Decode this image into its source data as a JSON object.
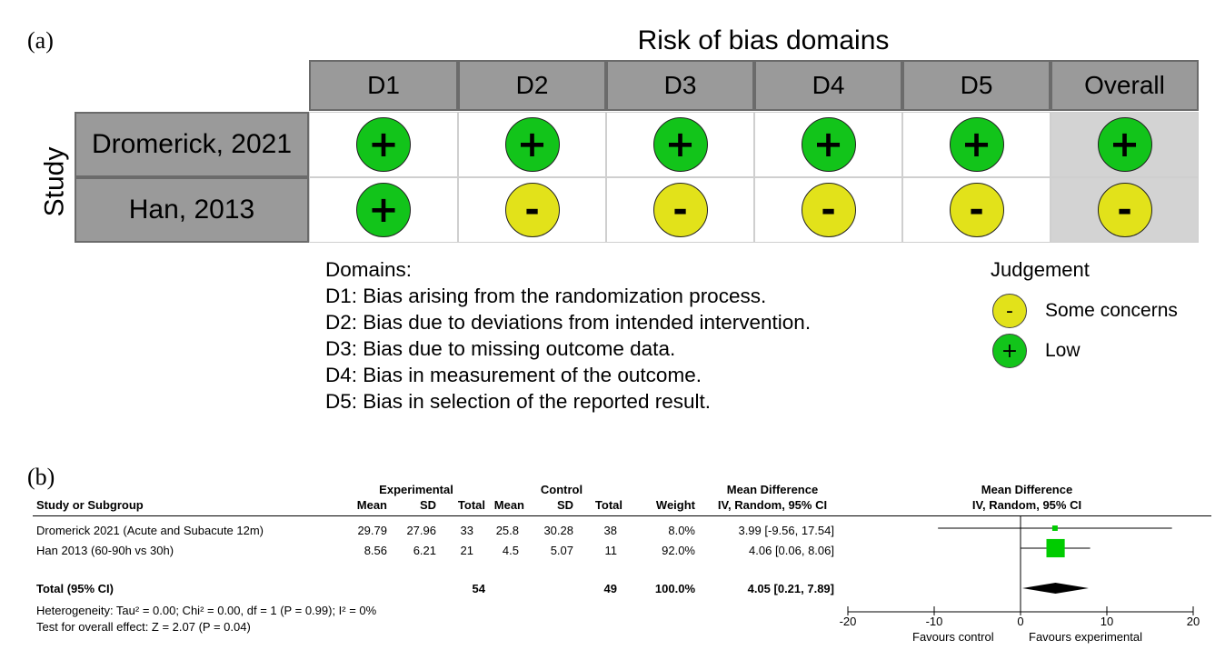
{
  "panel_a": {
    "label": "(a)",
    "title": "Risk of bias domains",
    "row_axis_label": "Study",
    "columns": [
      "D1",
      "D2",
      "D3",
      "D4",
      "D5",
      "Overall"
    ],
    "studies": [
      {
        "name": "Dromerick, 2021",
        "judgements": [
          "+",
          "+",
          "+",
          "+",
          "+",
          "+"
        ]
      },
      {
        "name": "Han, 2013",
        "judgements": [
          "+",
          "-",
          "-",
          "-",
          "-",
          "-"
        ]
      }
    ],
    "domains_heading": "Domains:",
    "domains": [
      "D1: Bias arising from the randomization process.",
      "D2: Bias due to deviations from intended intervention.",
      "D3: Bias due to missing outcome data.",
      "D4: Bias in measurement of the outcome.",
      "D5: Bias in selection of the reported result."
    ],
    "legend": {
      "title": "Judgement",
      "items": [
        {
          "symbol": "-",
          "label": "Some concerns"
        },
        {
          "symbol": "+",
          "label": "Low"
        }
      ]
    },
    "colors": {
      "low": "#12c41a",
      "some_concerns": "#e2e21a",
      "header": "#9a9a9a"
    }
  },
  "panel_b": {
    "label": "(b)",
    "group_headers": {
      "experimental": "Experimental",
      "control": "Control",
      "md": "Mean Difference",
      "md_plot": "Mean Difference"
    },
    "columns": {
      "study": "Study or Subgroup",
      "mean_e": "Mean",
      "sd_e": "SD",
      "total_e": "Total",
      "mean_c": "Mean",
      "sd_c": "SD",
      "total_c": "Total",
      "weight": "Weight",
      "md": "IV, Random, 95% CI",
      "md_plot": "IV, Random, 95% CI"
    },
    "rows": [
      {
        "study": "Dromerick 2021 (Acute and Subacute 12m)",
        "mean_e": "29.79",
        "sd_e": "27.96",
        "total_e": "33",
        "mean_c": "25.8",
        "sd_c": "30.28",
        "total_c": "38",
        "weight": "8.0%",
        "md": "3.99 [-9.56, 17.54]"
      },
      {
        "study": "Han 2013 (60-90h vs 30h)",
        "mean_e": "8.56",
        "sd_e": "6.21",
        "total_e": "21",
        "mean_c": "4.5",
        "sd_c": "5.07",
        "total_c": "11",
        "weight": "92.0%",
        "md": "4.06 [0.06, 8.06]"
      }
    ],
    "total": {
      "study": "Total (95% CI)",
      "total_e": "54",
      "total_c": "49",
      "weight": "100.0%",
      "md": "4.05 [0.21, 7.89]"
    },
    "heterogeneity": "Heterogeneity: Tau² = 0.00; Chi² = 0.00, df = 1 (P = 0.99); I² = 0%",
    "overall_effect": "Test for overall effect: Z = 2.07 (P = 0.04)",
    "favours_left": "Favours control",
    "favours_right": "Favours experimental"
  },
  "chart_data": {
    "type": "scatter",
    "title": "Mean Difference IV, Random, 95% CI",
    "xlabel": "",
    "xlim": [
      -20,
      20
    ],
    "ticks": [
      -20,
      -10,
      0,
      10,
      20
    ],
    "tick_labels": [
      "-20",
      "-10",
      "0",
      "10",
      "20"
    ],
    "series": [
      {
        "name": "Dromerick 2021 (Acute and Subacute 12m)",
        "estimate": 3.99,
        "lower": -9.56,
        "upper": 17.54,
        "weight": 8.0
      },
      {
        "name": "Han 2013 (60-90h vs 30h)",
        "estimate": 4.06,
        "lower": 0.06,
        "upper": 8.06,
        "weight": 92.0
      }
    ],
    "pooled": {
      "estimate": 4.05,
      "lower": 0.21,
      "upper": 7.89
    },
    "colors": {
      "study_marker": "#00cc00",
      "pooled": "#000000"
    }
  }
}
